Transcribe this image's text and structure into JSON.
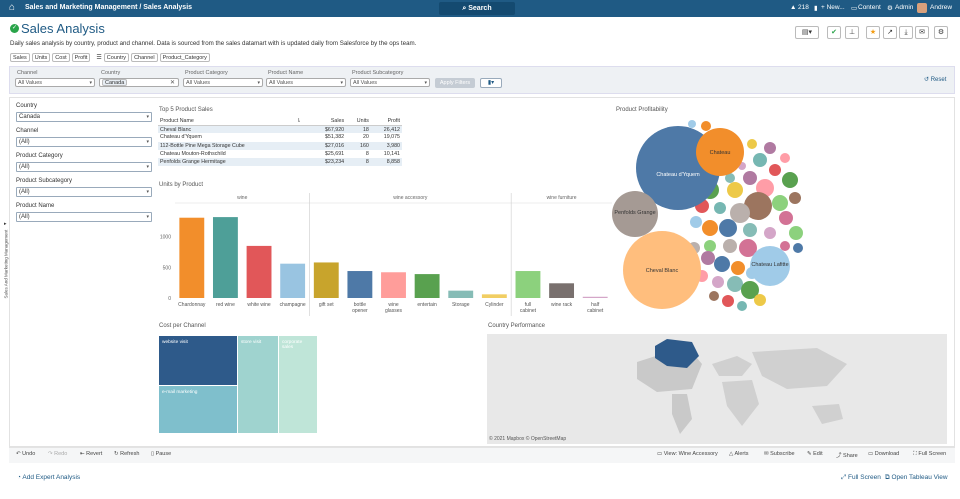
{
  "topbar": {
    "breadcrumb": "Sales and Marketing Management / Sales Analysis",
    "search": "Search",
    "count": "218",
    "new": "+ New...",
    "content": "Content",
    "admin": "Admin",
    "user": "Andrew"
  },
  "page": {
    "title": "Sales Analysis",
    "description": "Daily sales analysis by country, product and channel. Data is sourced from the sales datamart with is updated daily from Salesforce by the ops team.",
    "tags": [
      "Sales",
      "Units",
      "Cost",
      "Profit"
    ],
    "tags2": [
      "Country",
      "Channel",
      "Product_Category"
    ]
  },
  "filters": {
    "channel": {
      "label": "Channel",
      "value": "All Values"
    },
    "country": {
      "label": "Country",
      "value": "Canada"
    },
    "category": {
      "label": "Product Category",
      "value": "All Values"
    },
    "name": {
      "label": "Product Name",
      "value": "All Values"
    },
    "subcategory": {
      "label": "Product Subcategory",
      "value": "All Values"
    },
    "apply": "Apply Filters",
    "reset": "Reset"
  },
  "side": {
    "tab": "Sales And Marketing Management",
    "f": [
      {
        "label": "Country",
        "value": "Canada"
      },
      {
        "label": "Channel",
        "value": "(All)"
      },
      {
        "label": "Product Category",
        "value": "(All)"
      },
      {
        "label": "Product Subcategory",
        "value": "(All)"
      },
      {
        "label": "Product Name",
        "value": "(All)"
      }
    ]
  },
  "top5": {
    "title": "Top 5 Product Sales",
    "headers": [
      "Product Name",
      "Sales",
      "Units",
      "Profit"
    ],
    "rows": [
      [
        "Cheval Blanc",
        "$67,920",
        "18",
        "26,412"
      ],
      [
        "Chateau d'Yquem",
        "$51,382",
        "20",
        "19,075"
      ],
      [
        "112-Bottle Pine Mega Storage Cube",
        "$27,016",
        "160",
        "3,980"
      ],
      [
        "Chateau Mouton-Rothschild",
        "$25,691",
        "8",
        "10,141"
      ],
      [
        "Penfolds Grange Hermitage",
        "$23,234",
        "8",
        "8,858"
      ]
    ]
  },
  "chart_data": [
    {
      "type": "bar",
      "title": "Units by Product",
      "groups": [
        "wine",
        "wine accessory",
        "wine furniture"
      ],
      "categories": [
        "Chardonnay",
        "red wine",
        "white wine",
        "champagne",
        "gift set",
        "bottle opener",
        "wine glasses",
        "entertain",
        "Storage",
        "Cylinder",
        "full cabinet",
        "wine rack",
        "half cabinet"
      ],
      "group_of": [
        0,
        0,
        0,
        0,
        1,
        1,
        1,
        1,
        1,
        1,
        2,
        2,
        2
      ],
      "values": [
        1310,
        1320,
        850,
        560,
        580,
        440,
        420,
        390,
        120,
        60,
        440,
        240,
        20
      ],
      "colors": [
        "#f28e2b",
        "#4e9f98",
        "#e15759",
        "#99c4e1",
        "#c8a42c",
        "#4e79a7",
        "#ff9d9a",
        "#59a14f",
        "#86bcb6",
        "#f1ce63",
        "#8cd17d",
        "#79706e",
        "#d4a6c8"
      ],
      "ylim": [
        0,
        1550
      ],
      "yticks": [
        0,
        500,
        1000
      ]
    },
    {
      "type": "bubble",
      "title": "Product Profitability",
      "labels": [
        "Chateau d'Yquem",
        "Chateau",
        "Penfolds Grange",
        "Cheval Blanc",
        "Chateau Lafitte"
      ]
    }
  ],
  "treemap": {
    "title": "Cost per Channel",
    "cells": [
      "website visit",
      "store visit",
      "corporate sales",
      "e-mail marketing"
    ]
  },
  "map": {
    "title": "Country Performance",
    "credit": "© 2021 Mapbox © OpenStreetMap"
  },
  "toolbar": {
    "undo": "Undo",
    "redo": "Redo",
    "revert": "Revert",
    "refresh": "Refresh",
    "pause": "Pause",
    "view": "View: Wine Accessory",
    "alerts": "Alerts",
    "subscribe": "Subscribe",
    "edit": "Edit",
    "share": "Share",
    "download": "Download",
    "fullscreen": "Full Screen"
  },
  "footer": {
    "add": "Add Expert Analysis",
    "full": "Full Screen",
    "open": "Open Tableau View"
  },
  "colors": {
    "navy": "#1f5a84",
    "green": "#2aa44a",
    "star": "#f39c12"
  }
}
